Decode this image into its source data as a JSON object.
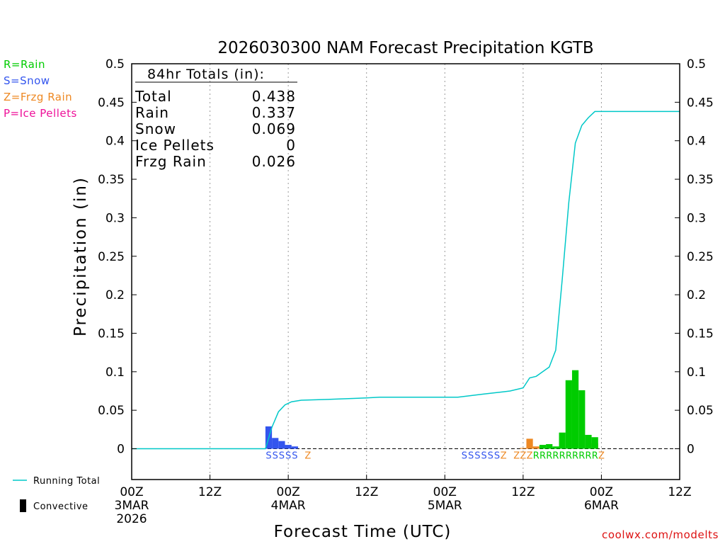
{
  "chart_data": {
    "type": "bar",
    "title": "2026030300 NAM Forecast Precipitation KGTB",
    "xlabel": "Forecast Time (UTC)",
    "ylabel": "Precipitation (in)",
    "ylim": [
      -0.04,
      0.5
    ],
    "xlim_hours": [
      0,
      84
    ],
    "y_ticks": [
      0,
      0.05,
      0.1,
      0.15,
      0.2,
      0.25,
      0.3,
      0.35,
      0.4,
      0.45,
      0.5
    ],
    "y_tick_labels": [
      "0",
      "0.05",
      "0.1",
      "0.15",
      "0.2",
      "0.25",
      "0.3",
      "0.35",
      "0.4",
      "0.45",
      "0.5"
    ],
    "x_ticks": [
      {
        "hour": 0,
        "lines": [
          "00Z",
          "3MAR",
          "2026"
        ]
      },
      {
        "hour": 12,
        "lines": [
          "12Z"
        ]
      },
      {
        "hour": 24,
        "lines": [
          "00Z",
          "4MAR"
        ]
      },
      {
        "hour": 36,
        "lines": [
          "12Z"
        ]
      },
      {
        "hour": 48,
        "lines": [
          "00Z",
          "5MAR"
        ]
      },
      {
        "hour": 60,
        "lines": [
          "12Z"
        ]
      },
      {
        "hour": 72,
        "lines": [
          "00Z",
          "6MAR"
        ]
      },
      {
        "hour": 84,
        "lines": [
          "12Z"
        ]
      }
    ],
    "grid_hours": [
      12,
      24,
      36,
      48,
      60,
      72
    ],
    "legend_types": [
      {
        "label": "R=Rain",
        "color": "#00cc00"
      },
      {
        "label": "S=Snow",
        "color": "#3355ee"
      },
      {
        "label": "Z=Frzg Rain",
        "color": "#ee8822"
      },
      {
        "label": "P=Ice Pellets",
        "color": "#ee1199"
      }
    ],
    "legend_lines": [
      {
        "label": "Running Total",
        "color": "#00c8c8",
        "kind": "line"
      },
      {
        "label": "Convective",
        "color": "#000000",
        "kind": "bar"
      }
    ],
    "totals": {
      "header": "84hr Totals (in):",
      "rows": [
        {
          "label": "Total",
          "value": "0.438"
        },
        {
          "label": "Rain",
          "value": "0.337"
        },
        {
          "label": "Snow",
          "value": "0.069"
        },
        {
          "label": "Ice Pellets",
          "value": "0"
        },
        {
          "label": "Frzg Rain",
          "value": "0.026"
        }
      ]
    },
    "series": [
      {
        "name": "Snow",
        "color": "#3355ee",
        "bars": [
          {
            "hour": 21,
            "value": 0.029
          },
          {
            "hour": 22,
            "value": 0.014
          },
          {
            "hour": 23,
            "value": 0.01
          },
          {
            "hour": 24,
            "value": 0.005
          },
          {
            "hour": 25,
            "value": 0.003
          }
        ]
      },
      {
        "name": "Frzg Rain",
        "color": "#ee8822",
        "bars": [
          {
            "hour": 60,
            "value": 0.001
          },
          {
            "hour": 61,
            "value": 0.013
          },
          {
            "hour": 62,
            "value": 0.003
          },
          {
            "hour": 71,
            "value": 0.007
          }
        ]
      },
      {
        "name": "Rain",
        "color": "#00cc00",
        "bars": [
          {
            "hour": 63,
            "value": 0.005
          },
          {
            "hour": 64,
            "value": 0.006
          },
          {
            "hour": 65,
            "value": 0.003
          },
          {
            "hour": 66,
            "value": 0.021
          },
          {
            "hour": 67,
            "value": 0.089
          },
          {
            "hour": 68,
            "value": 0.102
          },
          {
            "hour": 69,
            "value": 0.076
          },
          {
            "hour": 70,
            "value": 0.018
          },
          {
            "hour": 71,
            "value": 0.015
          }
        ]
      }
    ],
    "running_total": {
      "name": "Running Total",
      "hours": [
        0,
        20.5,
        21.5,
        22.5,
        23.5,
        24.5,
        26,
        30,
        36,
        38,
        41,
        48,
        50,
        54,
        57,
        58,
        60,
        61,
        62,
        63,
        64,
        65,
        66,
        67,
        68,
        69,
        70,
        71,
        72,
        84
      ],
      "values": [
        0,
        0,
        0.028,
        0.048,
        0.057,
        0.061,
        0.063,
        0.064,
        0.066,
        0.067,
        0.067,
        0.067,
        0.067,
        0.071,
        0.074,
        0.075,
        0.079,
        0.092,
        0.094,
        0.1,
        0.106,
        0.128,
        0.22,
        0.32,
        0.397,
        0.42,
        0.43,
        0.438,
        0.438,
        0.438
      ]
    },
    "type_row": [
      {
        "hour": 21,
        "code": "S",
        "color": "#3355ee"
      },
      {
        "hour": 22,
        "code": "S",
        "color": "#3355ee"
      },
      {
        "hour": 23,
        "code": "S",
        "color": "#3355ee"
      },
      {
        "hour": 24,
        "code": "S",
        "color": "#3355ee"
      },
      {
        "hour": 25,
        "code": "S",
        "color": "#3355ee"
      },
      {
        "hour": 27,
        "code": "Z",
        "color": "#ee8822"
      },
      {
        "hour": 51,
        "code": "S",
        "color": "#3355ee"
      },
      {
        "hour": 52,
        "code": "S",
        "color": "#3355ee"
      },
      {
        "hour": 53,
        "code": "S",
        "color": "#3355ee"
      },
      {
        "hour": 54,
        "code": "S",
        "color": "#3355ee"
      },
      {
        "hour": 55,
        "code": "S",
        "color": "#3355ee"
      },
      {
        "hour": 56,
        "code": "S",
        "color": "#3355ee"
      },
      {
        "hour": 57,
        "code": "Z",
        "color": "#ee8822"
      },
      {
        "hour": 59,
        "code": "Z",
        "color": "#ee8822"
      },
      {
        "hour": 60,
        "code": "Z",
        "color": "#ee8822"
      },
      {
        "hour": 61,
        "code": "Z",
        "color": "#ee8822"
      },
      {
        "hour": 62,
        "code": "R",
        "color": "#00cc00"
      },
      {
        "hour": 63,
        "code": "R",
        "color": "#00cc00"
      },
      {
        "hour": 64,
        "code": "R",
        "color": "#00cc00"
      },
      {
        "hour": 65,
        "code": "R",
        "color": "#00cc00"
      },
      {
        "hour": 66,
        "code": "R",
        "color": "#00cc00"
      },
      {
        "hour": 67,
        "code": "R",
        "color": "#00cc00"
      },
      {
        "hour": 68,
        "code": "R",
        "color": "#00cc00"
      },
      {
        "hour": 69,
        "code": "R",
        "color": "#00cc00"
      },
      {
        "hour": 70,
        "code": "R",
        "color": "#00cc00"
      },
      {
        "hour": 71,
        "code": "R",
        "color": "#00cc00"
      },
      {
        "hour": 72,
        "code": "Z",
        "color": "#ee8822"
      }
    ]
  },
  "footer": {
    "credit": "coolwx.com/modelts",
    "credit_color": "#dd1111"
  }
}
